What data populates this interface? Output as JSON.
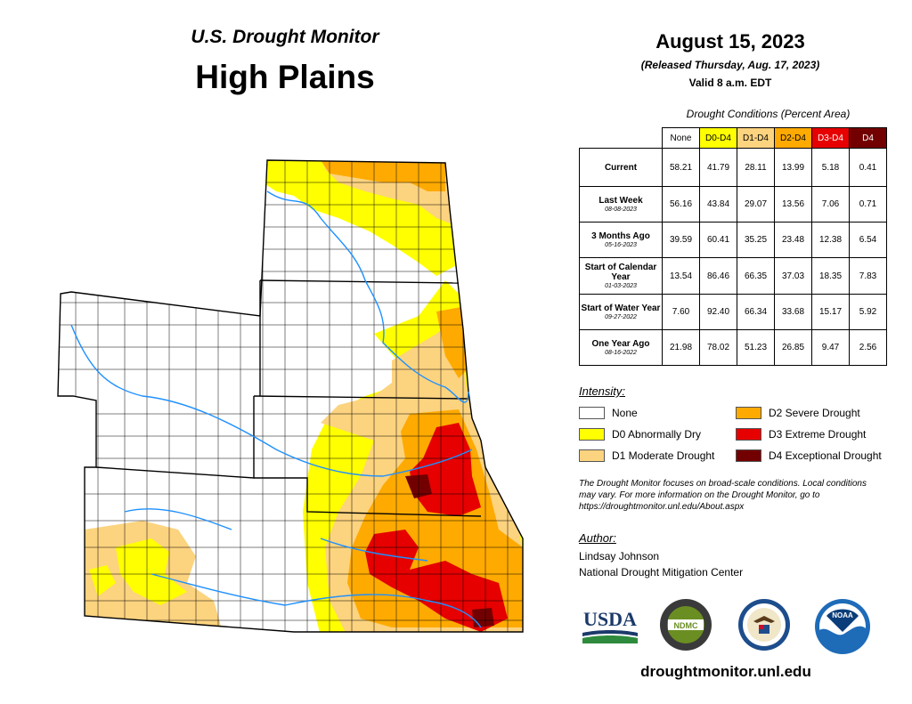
{
  "header": {
    "title_line1": "U.S. Drought Monitor",
    "title_line2": "High Plains",
    "date": "August 15, 2023",
    "released": "(Released Thursday, Aug. 17, 2023)",
    "valid": "Valid 8 a.m. EDT"
  },
  "conditions": {
    "caption": "Drought Conditions (Percent Area)",
    "columns": [
      {
        "label": "None",
        "color": "#ffffff",
        "text_color": "#000000"
      },
      {
        "label": "D0-D4",
        "color": "#ffff00",
        "text_color": "#000000"
      },
      {
        "label": "D1-D4",
        "color": "#fcd37f",
        "text_color": "#000000"
      },
      {
        "label": "D2-D4",
        "color": "#ffaa00",
        "text_color": "#000000"
      },
      {
        "label": "D3-D4",
        "color": "#e60000",
        "text_color": "#ffffff"
      },
      {
        "label": "D4",
        "color": "#730000",
        "text_color": "#ffffff"
      }
    ],
    "rows": [
      {
        "label": "Current",
        "date": "",
        "values": [
          "58.21",
          "41.79",
          "28.11",
          "13.99",
          "5.18",
          "0.41"
        ]
      },
      {
        "label": "Last Week",
        "date": "08-08-2023",
        "values": [
          "56.16",
          "43.84",
          "29.07",
          "13.56",
          "7.06",
          "0.71"
        ]
      },
      {
        "label": "3 Months Ago",
        "date": "05-16-2023",
        "values": [
          "39.59",
          "60.41",
          "35.25",
          "23.48",
          "12.38",
          "6.54"
        ]
      },
      {
        "label": "Start of Calendar Year",
        "date": "01-03-2023",
        "values": [
          "13.54",
          "86.46",
          "66.35",
          "37.03",
          "18.35",
          "7.83"
        ]
      },
      {
        "label": "Start of Water Year",
        "date": "09-27-2022",
        "values": [
          "7.60",
          "92.40",
          "66.34",
          "33.68",
          "15.17",
          "5.92"
        ]
      },
      {
        "label": "One Year Ago",
        "date": "08-16-2022",
        "values": [
          "21.98",
          "78.02",
          "51.23",
          "26.85",
          "9.47",
          "2.56"
        ]
      }
    ]
  },
  "legend": {
    "title": "Intensity:",
    "items": [
      {
        "label": "None",
        "color": "#ffffff"
      },
      {
        "label": "D0 Abnormally Dry",
        "color": "#ffff00"
      },
      {
        "label": "D1 Moderate Drought",
        "color": "#fcd37f"
      },
      {
        "label": "D2 Severe Drought",
        "color": "#ffaa00"
      },
      {
        "label": "D3 Extreme Drought",
        "color": "#e60000"
      },
      {
        "label": "D4 Exceptional Drought",
        "color": "#730000"
      }
    ]
  },
  "note": "The Drought Monitor focuses on broad-scale conditions. Local conditions may vary. For more information on the Drought Monitor, go to https://droughtmonitor.unl.edu/About.aspx",
  "author": {
    "title": "Author:",
    "name": "Lindsay Johnson",
    "org": "National Drought Mitigation Center"
  },
  "logos": {
    "usda": "USDA",
    "ndmc": "NDMC",
    "noaa": "NOAA",
    "doc_icon": "eagle-seal-icon"
  },
  "footer": {
    "site": "droughtmonitor.unl.edu"
  }
}
